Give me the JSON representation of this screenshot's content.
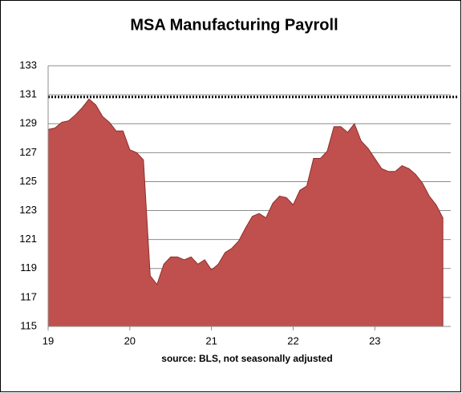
{
  "chart_data": {
    "type": "area",
    "title": "MSA Manufacturing Payroll",
    "note": "source: BLS, not seasonally adjusted",
    "color": "#c0504d",
    "edge_color": "#8b2f2c",
    "x": [
      19,
      19.083,
      19.167,
      19.25,
      19.333,
      19.417,
      19.5,
      19.583,
      19.667,
      19.75,
      19.833,
      19.917,
      20,
      20.083,
      20.167,
      20.25,
      20.333,
      20.417,
      20.5,
      20.583,
      20.667,
      20.75,
      20.833,
      20.917,
      21,
      21.083,
      21.167,
      21.25,
      21.333,
      21.417,
      21.5,
      21.583,
      21.667,
      21.75,
      21.833,
      21.917,
      22,
      22.083,
      22.167,
      22.25,
      22.333,
      22.417,
      22.5,
      22.583,
      22.667,
      22.75,
      22.833,
      22.917,
      23,
      23.083,
      23.167,
      23.25,
      23.333,
      23.417,
      23.5,
      23.583,
      23.667,
      23.75,
      23.833
    ],
    "values": [
      128.6,
      128.7,
      129.1,
      129.2,
      129.6,
      130.1,
      130.7,
      130.3,
      129.5,
      129.1,
      128.5,
      128.5,
      127.2,
      127.0,
      126.5,
      118.5,
      117.9,
      119.3,
      119.8,
      119.8,
      119.6,
      119.8,
      119.3,
      119.6,
      118.9,
      119.3,
      120.1,
      120.4,
      120.9,
      121.8,
      122.6,
      122.8,
      122.5,
      123.5,
      124.0,
      123.9,
      123.4,
      124.4,
      124.7,
      126.6,
      126.6,
      127.1,
      128.8,
      128.8,
      128.4,
      129.0,
      127.8,
      127.3,
      126.6,
      125.9,
      125.7,
      125.7,
      126.1,
      125.9,
      125.5,
      124.9,
      124.0,
      123.4,
      122.5
    ],
    "reference_line": 130.85,
    "xlim": [
      19,
      23.93
    ],
    "xticks": [
      19,
      20,
      21,
      22,
      23
    ],
    "ylim": [
      115,
      133
    ],
    "yticks": [
      115,
      117,
      119,
      121,
      123,
      125,
      127,
      129,
      131,
      133
    ],
    "grid": true
  }
}
